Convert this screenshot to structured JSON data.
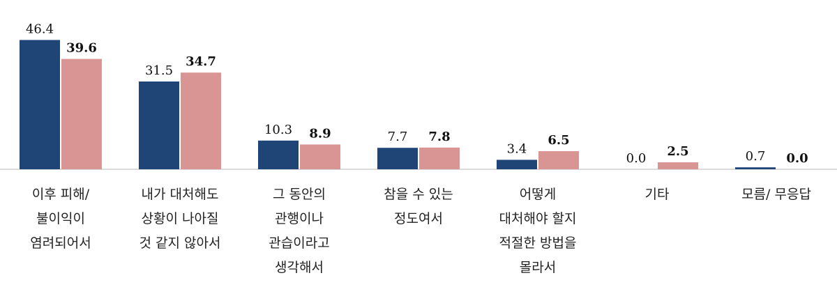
{
  "chart_data": {
    "type": "bar",
    "categories": [
      [
        "이후 피해/",
        "불이익이",
        "염려되어서"
      ],
      [
        "내가 대처해도",
        "상황이 나아질",
        "것 같지 않아서"
      ],
      [
        "그 동안의",
        "관행이나",
        "관습이라고",
        "생각해서"
      ],
      [
        "참을 수 있는",
        "정도여서"
      ],
      [
        "어떻게",
        "대처해야 할지",
        "적절한 방법을",
        "몰라서"
      ],
      [
        "기타"
      ],
      [
        "모름/ 무응답"
      ]
    ],
    "series": [
      {
        "values": [
          46.4,
          31.5,
          10.3,
          7.7,
          3.4,
          0.0,
          0.7
        ],
        "labels": [
          "46.4",
          "31.5",
          "10.3",
          "7.7",
          "3.4",
          "0.0",
          "0.7"
        ],
        "color": "#1f4577"
      },
      {
        "values": [
          39.6,
          34.7,
          8.9,
          7.8,
          6.5,
          2.5,
          0.0
        ],
        "labels": [
          "39.6",
          "34.7",
          "8.9",
          "7.8",
          "6.5",
          "2.5",
          "0.0"
        ],
        "color": "#d99594"
      }
    ],
    "ylim": [
      0,
      50
    ],
    "grid": false,
    "legend": "none"
  }
}
